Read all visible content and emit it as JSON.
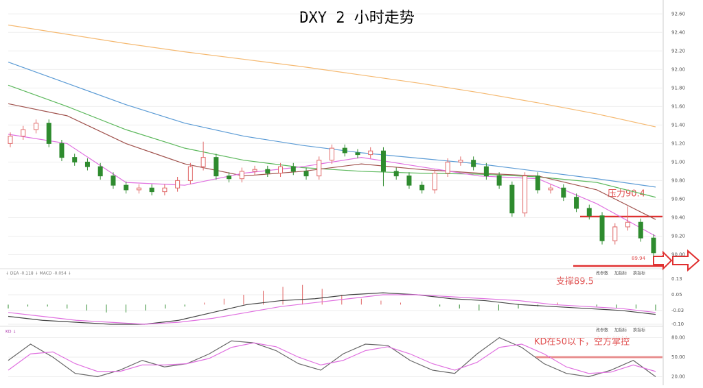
{
  "chart_data": [
    {
      "type": "candlestick",
      "title": "DXY 2 小时走势",
      "up_color": "#e06666",
      "down_color": "#2e8b2e",
      "open": [
        91.2,
        91.28,
        91.35,
        91.42,
        91.2,
        91.05,
        91.0,
        90.95,
        90.85,
        90.75,
        90.7,
        90.72,
        90.68,
        90.72,
        90.8,
        90.95,
        91.05,
        90.85,
        90.82,
        90.9,
        90.92,
        90.88,
        90.95,
        90.9,
        90.85,
        91.02,
        91.15,
        91.1,
        91.08,
        91.12,
        90.9,
        90.85,
        90.75,
        90.7,
        90.88,
        91.0,
        91.02,
        90.95,
        90.85,
        90.75,
        90.45,
        90.85,
        90.7,
        90.72,
        90.62,
        90.5,
        90.42,
        90.15,
        90.3,
        90.35,
        90.18
      ],
      "high": [
        91.32,
        91.39,
        91.46,
        91.46,
        91.24,
        91.09,
        91.04,
        90.99,
        90.89,
        90.79,
        90.76,
        90.76,
        90.76,
        90.84,
        90.99,
        91.22,
        91.09,
        90.89,
        90.94,
        90.96,
        90.96,
        90.99,
        90.99,
        90.94,
        91.06,
        91.19,
        91.19,
        91.14,
        91.16,
        91.16,
        90.94,
        90.89,
        90.79,
        90.92,
        91.04,
        91.06,
        91.06,
        90.99,
        90.89,
        90.79,
        90.89,
        90.89,
        90.76,
        90.76,
        90.66,
        90.54,
        90.46,
        90.34,
        90.52,
        90.39,
        90.22
      ],
      "low": [
        91.16,
        91.24,
        91.31,
        91.16,
        91.01,
        90.96,
        90.91,
        90.81,
        90.71,
        90.66,
        90.66,
        90.64,
        90.64,
        90.68,
        90.76,
        90.91,
        90.81,
        90.78,
        90.78,
        90.86,
        90.84,
        90.84,
        90.86,
        90.81,
        90.81,
        90.98,
        91.06,
        91.04,
        91.04,
        90.74,
        90.81,
        90.71,
        90.66,
        90.66,
        90.84,
        90.96,
        90.91,
        90.81,
        90.71,
        90.41,
        90.41,
        90.66,
        90.66,
        90.58,
        90.46,
        90.38,
        90.11,
        90.11,
        90.26,
        90.14,
        89.98
      ],
      "close": [
        91.28,
        91.35,
        91.42,
        91.2,
        91.05,
        91.0,
        90.95,
        90.85,
        90.75,
        90.7,
        90.72,
        90.68,
        90.72,
        90.8,
        90.95,
        91.05,
        90.85,
        90.82,
        90.9,
        90.92,
        90.88,
        90.95,
        90.9,
        90.85,
        91.02,
        91.15,
        91.1,
        91.08,
        91.12,
        90.9,
        90.85,
        90.75,
        90.7,
        90.88,
        91.0,
        91.02,
        90.95,
        90.85,
        90.75,
        90.45,
        90.85,
        90.7,
        90.72,
        90.62,
        90.5,
        90.42,
        90.15,
        90.3,
        90.35,
        90.18,
        90.02
      ],
      "series": [
        {
          "color": "#f5b971",
          "values": [
            92.48,
            92.38,
            92.28,
            92.19,
            92.11,
            92.03,
            91.94,
            91.85,
            91.75,
            91.64,
            91.52,
            91.38
          ]
        },
        {
          "color": "#5b9bd5",
          "values": [
            92.08,
            91.85,
            91.62,
            91.42,
            91.28,
            91.18,
            91.1,
            91.04,
            90.98,
            90.9,
            90.82,
            90.73
          ]
        },
        {
          "color": "#5cb85c",
          "values": [
            91.83,
            91.6,
            91.35,
            91.15,
            91.02,
            90.94,
            90.9,
            90.88,
            90.87,
            90.84,
            90.78,
            90.62
          ]
        },
        {
          "color": "#a0524d",
          "values": [
            91.63,
            91.5,
            91.2,
            90.98,
            90.85,
            90.9,
            90.98,
            90.92,
            90.88,
            90.85,
            90.7,
            90.38
          ]
        },
        {
          "color": "#e070e0",
          "values": [
            91.3,
            91.2,
            90.78,
            90.75,
            90.88,
            90.95,
            91.05,
            90.95,
            90.85,
            90.82,
            90.55,
            90.2
          ]
        }
      ],
      "ylim": [
        89.9,
        92.75
      ],
      "yticks": [
        {
          "value": 92.6,
          "label": "92.60"
        },
        {
          "value": 92.4,
          "label": "92.40"
        },
        {
          "value": 92.2,
          "label": "92.20"
        },
        {
          "value": 92.0,
          "label": "92.00"
        },
        {
          "value": 91.8,
          "label": "91.80"
        },
        {
          "value": 91.6,
          "label": "91.60"
        },
        {
          "value": 91.4,
          "label": "91.40"
        },
        {
          "value": 91.2,
          "label": "91.20"
        },
        {
          "value": 91.0,
          "label": "91.00"
        },
        {
          "value": 90.8,
          "label": "90.80"
        },
        {
          "value": 90.6,
          "label": "90.60"
        },
        {
          "value": 90.4,
          "label": "90.40"
        },
        {
          "value": 90.2,
          "label": "90.20"
        },
        {
          "value": 90.0,
          "label": "90.00"
        }
      ],
      "grid": true,
      "annotations": [
        "压力90.4",
        "支撑89.5",
        "89.94"
      ]
    },
    {
      "type": "macd",
      "header": "↓ DEA -0.118 ↓ MACD -0.054 ↓",
      "buttons": [
        "改参数",
        "加指标",
        "换指标"
      ],
      "histogram": [
        -0.02,
        -0.01,
        -0.01,
        -0.02,
        -0.03,
        -0.04,
        -0.04,
        -0.03,
        -0.02,
        -0.01,
        0.01,
        0.03,
        0.05,
        0.07,
        0.09,
        0.1,
        0.08,
        0.05,
        0.03,
        0.02,
        0.01,
        0.0,
        -0.01,
        -0.02,
        -0.03,
        -0.03,
        -0.02,
        -0.01,
        0.01,
        0.0,
        -0.01,
        -0.02,
        -0.02,
        -0.03
      ],
      "series": [
        {
          "color": "#444444",
          "values": [
            -0.06,
            -0.08,
            -0.09,
            -0.1,
            -0.1,
            -0.08,
            -0.04,
            0.0,
            0.02,
            0.03,
            0.05,
            0.06,
            0.05,
            0.03,
            0.02,
            0.0,
            -0.01,
            -0.02,
            -0.03,
            -0.05
          ]
        },
        {
          "color": "#e070e0",
          "values": [
            -0.04,
            -0.06,
            -0.08,
            -0.09,
            -0.1,
            -0.09,
            -0.07,
            -0.04,
            -0.01,
            0.01,
            0.03,
            0.05,
            0.05,
            0.04,
            0.03,
            0.02,
            0.0,
            -0.01,
            -0.02,
            -0.04
          ]
        }
      ],
      "ylim": [
        -0.107,
        0.172
      ],
      "yticks": [
        0.13,
        0.05,
        -0.03,
        {
          "value": -0.1,
          "label": "-0.10"
        }
      ]
    },
    {
      "type": "kd",
      "header": "KD ↓",
      "buttons": [
        "改参数",
        "加指标",
        "换指标"
      ],
      "series": [
        {
          "color": "#666666",
          "values": [
            45,
            70,
            50,
            25,
            20,
            30,
            45,
            35,
            40,
            55,
            75,
            72,
            60,
            40,
            30,
            55,
            70,
            68,
            45,
            30,
            25,
            55,
            80,
            65,
            40,
            25,
            20,
            30,
            45,
            20
          ]
        },
        {
          "color": "#e070e0",
          "values": [
            30,
            55,
            58,
            40,
            28,
            28,
            38,
            38,
            40,
            48,
            65,
            72,
            66,
            50,
            38,
            45,
            60,
            66,
            55,
            40,
            30,
            42,
            65,
            70,
            55,
            35,
            25,
            27,
            38,
            28
          ]
        }
      ],
      "ylim": [
        6.8,
        95.3
      ],
      "yticks": [
        {
          "value": 80,
          "label": "80.00"
        },
        {
          "value": 50,
          "label": "50.00"
        },
        {
          "value": 20,
          "label": "20.00"
        }
      ],
      "annotations": [
        "KD在50以下，空方掌控"
      ]
    }
  ]
}
